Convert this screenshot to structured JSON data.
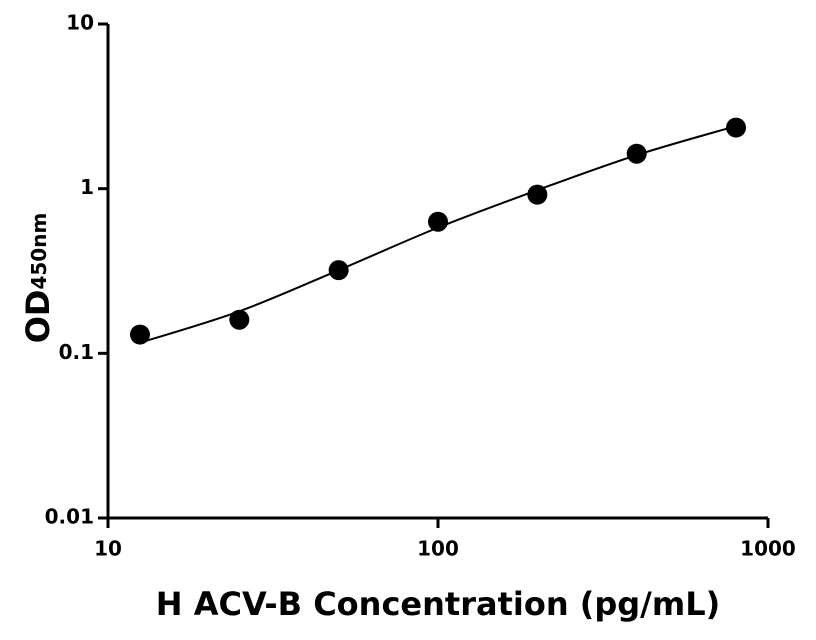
{
  "chart_data": {
    "type": "scatter",
    "x_label": "H ACV-B Concentration (pg/mL)",
    "y_label": "OD",
    "y_label_sub": "450nm",
    "xlim": [
      10,
      1000
    ],
    "ylim": [
      0.01,
      10
    ],
    "xticks": [
      10,
      100,
      1000
    ],
    "yticks": [
      0.01,
      0.1,
      1,
      10
    ],
    "xscale": "log",
    "yscale": "log",
    "series": [
      {
        "type": "scatter",
        "color": "#000000",
        "x": [
          12.5,
          25,
          50,
          100,
          200,
          400,
          800
        ],
        "values": [
          0.13,
          0.16,
          0.32,
          0.63,
          0.92,
          1.63,
          2.35
        ]
      },
      {
        "type": "line",
        "color": "#000000",
        "x": [
          12.5,
          25,
          50,
          100,
          200,
          400,
          800
        ],
        "values": [
          0.116,
          0.18,
          0.32,
          0.58,
          0.98,
          1.6,
          2.4
        ]
      }
    ]
  }
}
